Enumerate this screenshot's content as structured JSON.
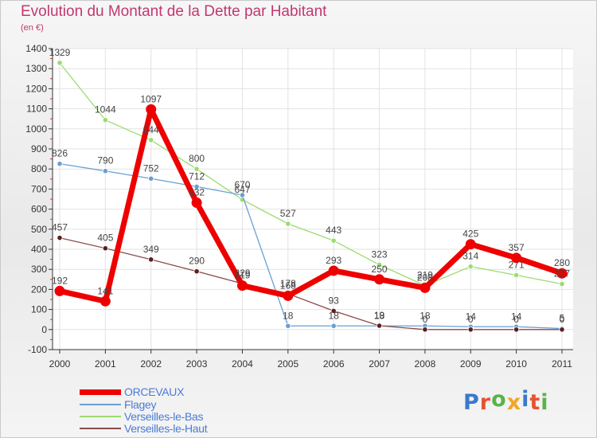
{
  "header": {
    "title": "Evolution du Montant de la Dette par Habitant",
    "unit": "(en €)"
  },
  "logo": {
    "text": "Proxiti",
    "letter_colors": [
      "#3a78c9",
      "#e8522f",
      "#57b44a",
      "#f1a628",
      "#3a78c9",
      "#e8522f",
      "#57b44a"
    ]
  },
  "chart_data": {
    "type": "line",
    "x": [
      2000,
      2001,
      2002,
      2003,
      2004,
      2005,
      2006,
      2007,
      2008,
      2009,
      2010,
      2011
    ],
    "x_tick_labels": [
      "2000",
      "2001",
      "2002",
      "2003",
      "2004",
      "2005",
      "2006",
      "2007",
      "2008",
      "2009",
      "2010",
      "2011"
    ],
    "ylim": [
      -100,
      1400
    ],
    "y_ticks": [
      -100,
      0,
      100,
      200,
      300,
      400,
      500,
      600,
      700,
      800,
      900,
      1000,
      1100,
      1200,
      1300,
      1400
    ],
    "y_tick_labels": [
      "-100",
      "0",
      "100",
      "200",
      "300",
      "400",
      "500",
      "600",
      "700",
      "800",
      "900",
      "1000",
      "1100",
      "1200",
      "1300",
      "1400"
    ],
    "grid": true,
    "legend_position": "bottom-left",
    "series": [
      {
        "name": "ORCEVAUX",
        "color": "#ee0000",
        "values": [
          192,
          141,
          1097,
          632,
          219,
          168,
          293,
          250,
          208,
          425,
          357,
          280
        ],
        "value_labels": [
          "192",
          "141",
          "1097",
          "632",
          "219",
          "168",
          "293",
          "250",
          "208",
          "425",
          "357",
          "280"
        ]
      },
      {
        "name": "Flagey",
        "color": "#6a9fd4",
        "values": [
          826,
          790,
          752,
          712,
          670,
          18,
          18,
          18,
          18,
          14,
          14,
          5
        ],
        "value_labels": [
          "826",
          "790",
          "752",
          "712",
          "670",
          "18",
          "18",
          "18",
          "18",
          "14",
          "14",
          "5"
        ]
      },
      {
        "name": "Verseilles-le-Bas",
        "color": "#9bdc6e",
        "values": [
          1329,
          1044,
          944,
          800,
          647,
          527,
          443,
          323,
          219,
          314,
          271,
          227
        ],
        "value_labels": [
          "1329",
          "1044",
          "944",
          "800",
          "647",
          "527",
          "443",
          "323",
          "219",
          "314",
          "271",
          "227"
        ]
      },
      {
        "name": "Verseilles-le-Haut",
        "color": "#8b4a4a",
        "values": [
          457,
          405,
          349,
          290,
          229,
          178,
          93,
          19,
          0,
          0,
          0,
          0
        ],
        "value_labels": [
          "457",
          "405",
          "349",
          "290",
          "229",
          "178",
          "93",
          "19",
          "0",
          "0",
          "0",
          "0"
        ]
      }
    ]
  }
}
